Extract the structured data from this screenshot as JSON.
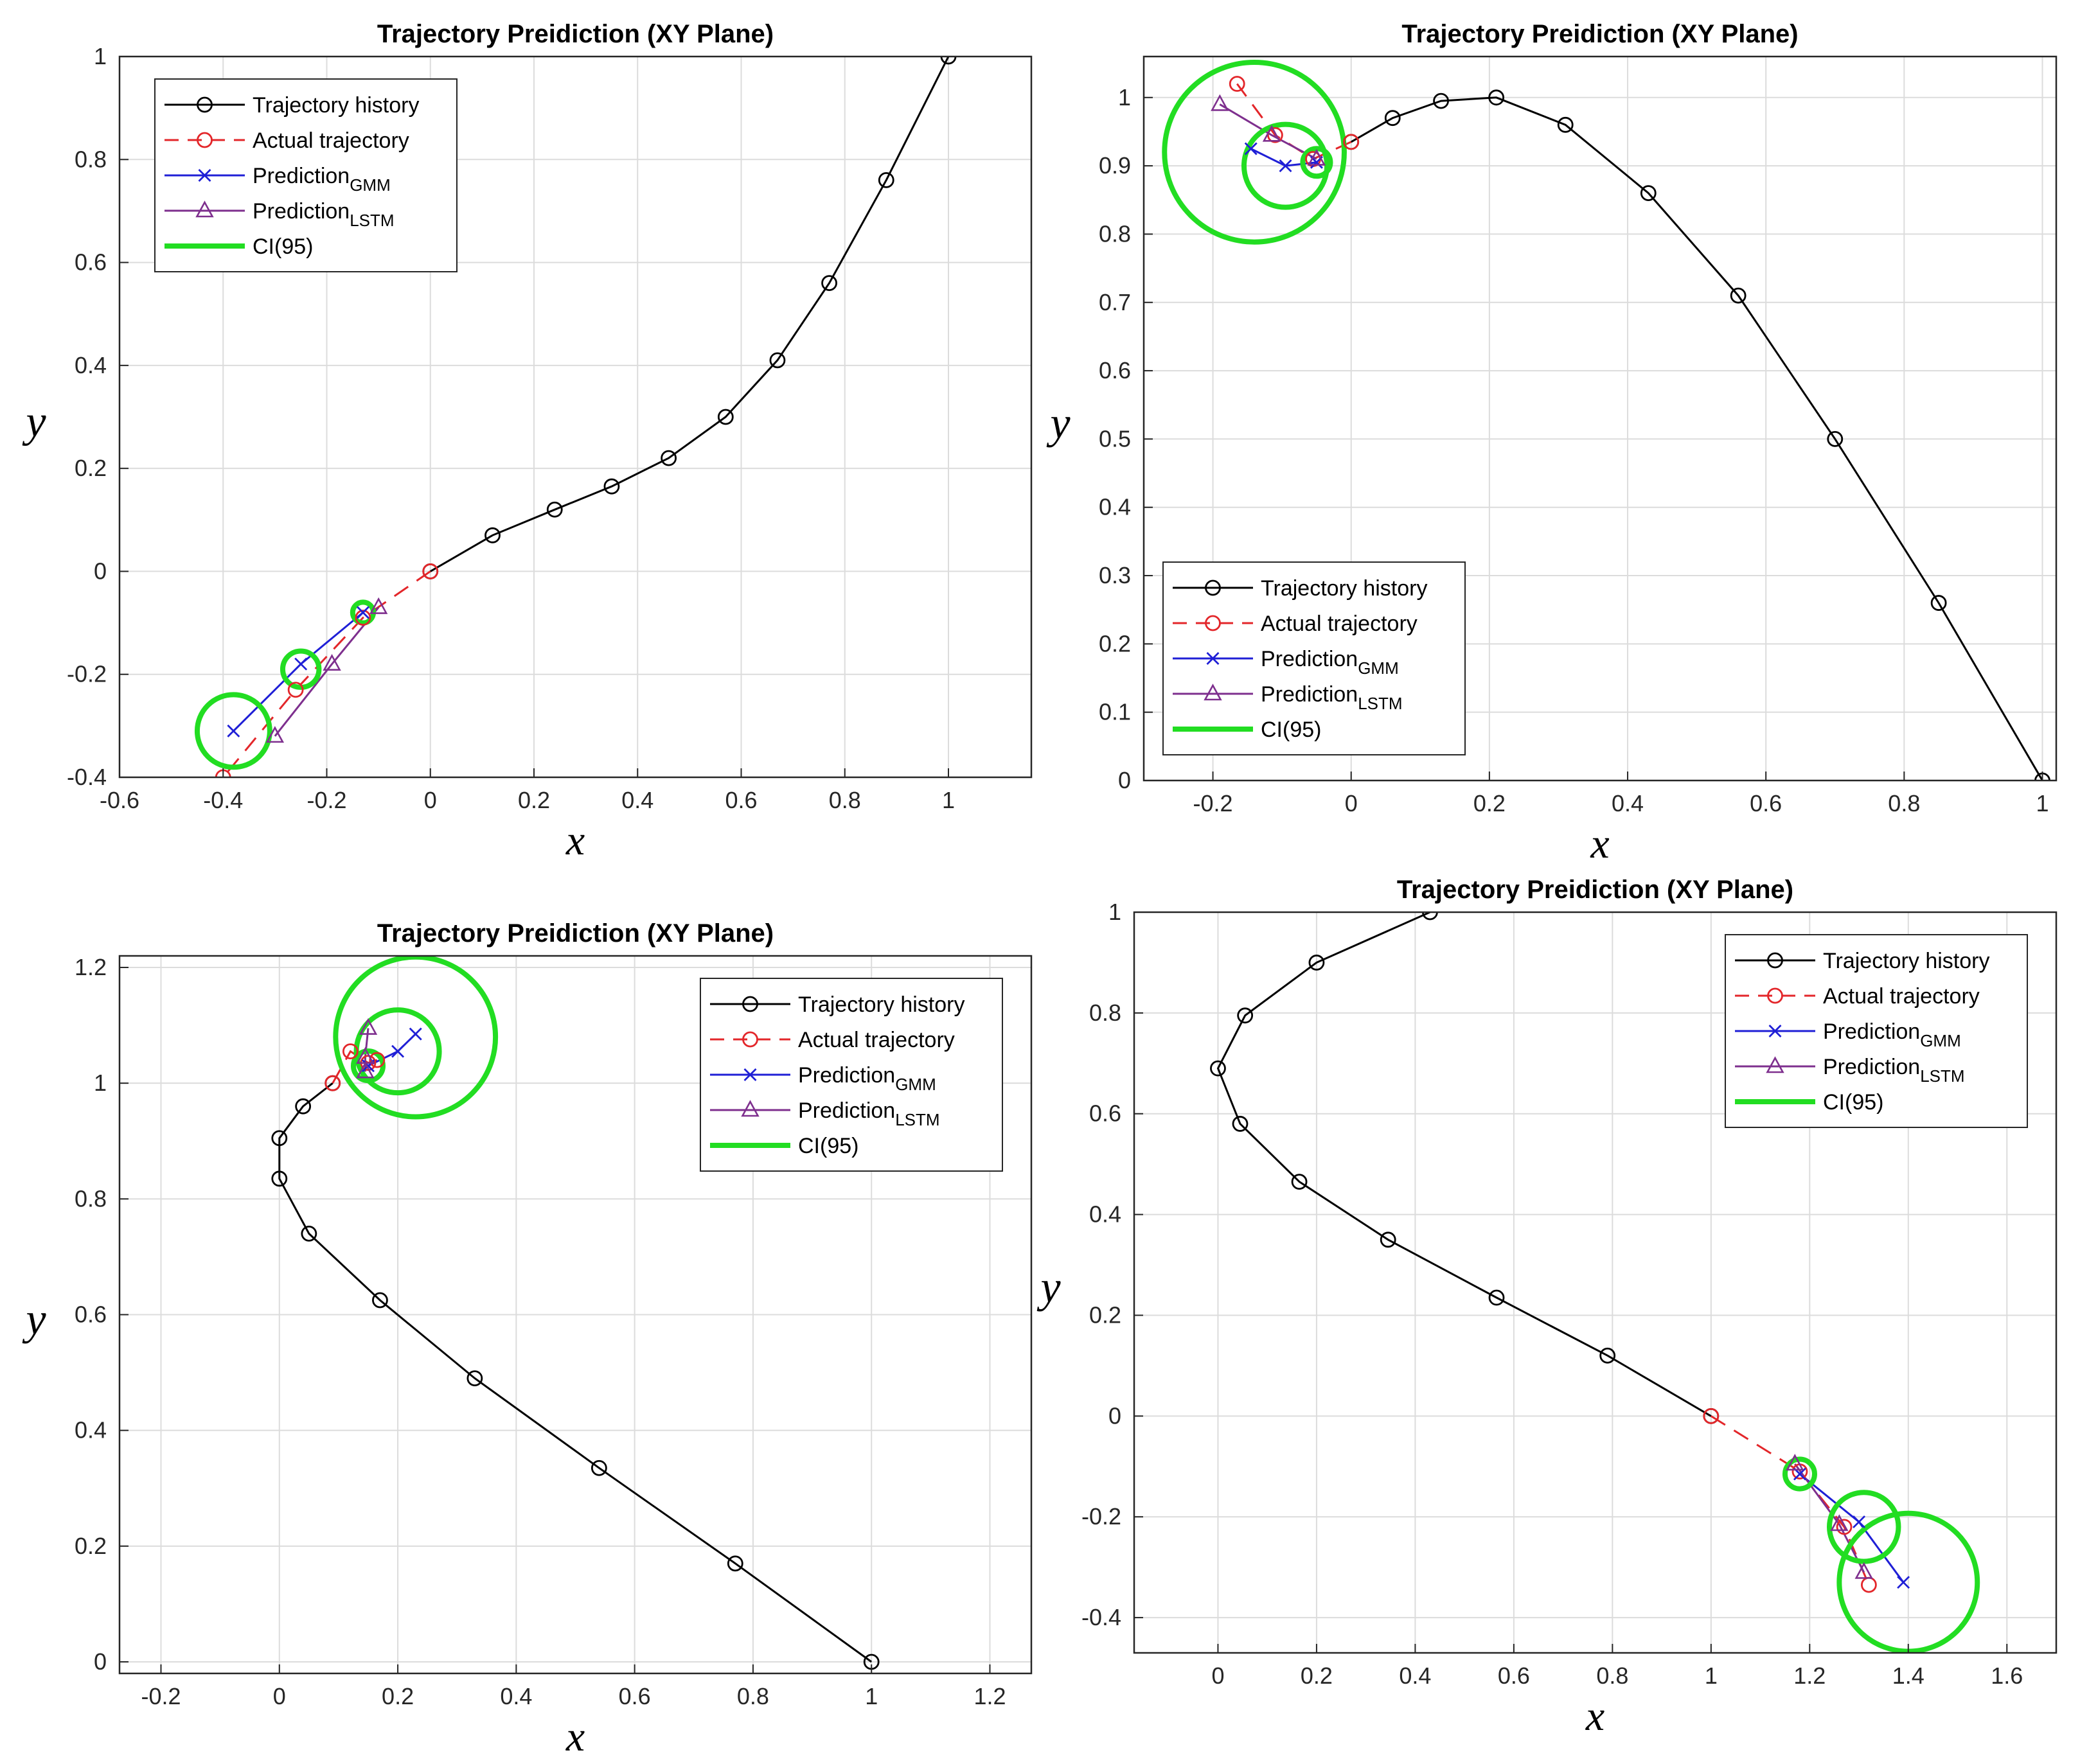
{
  "colors": {
    "history": "#000000",
    "actual": "#e3262a",
    "gmm": "#1f1fd6",
    "lstm": "#7e2f8e",
    "ci": "#22dd22",
    "grid": "#dcdcdc",
    "axes": "#262626"
  },
  "legend": {
    "history": "Trajectory history",
    "actual": "Actual trajectory",
    "gmm_base": "Prediction",
    "gmm_sub": "GMM",
    "lstm_base": "Prediction",
    "lstm_sub": "LSTM",
    "ci": "CI(95)"
  },
  "chart_data": [
    {
      "type": "line",
      "title": "Trajectory Preidiction (XY Plane)",
      "xlabel": "x",
      "ylabel": "y",
      "xlim": [
        -0.6,
        1.16
      ],
      "ylim": [
        -0.4,
        1.0
      ],
      "xticks": [
        -0.6,
        -0.4,
        -0.2,
        0,
        0.2,
        0.4,
        0.6,
        0.8,
        1
      ],
      "yticks": [
        -0.4,
        -0.2,
        0,
        0.2,
        0.4,
        0.6,
        0.8,
        1
      ],
      "grid": true,
      "legend_position": "top-left",
      "series": [
        {
          "name": "Trajectory history",
          "key": "history",
          "x": [
            1,
            0.88,
            0.77,
            0.67,
            0.57,
            0.46,
            0.35,
            0.24,
            0.12,
            0
          ],
          "y": [
            1,
            0.76,
            0.56,
            0.41,
            0.3,
            0.22,
            0.165,
            0.12,
            0.07,
            0
          ]
        },
        {
          "name": "Actual trajectory",
          "key": "actual",
          "x": [
            0,
            -0.13,
            -0.26,
            -0.4
          ],
          "y": [
            0,
            -0.09,
            -0.23,
            -0.4
          ]
        },
        {
          "name": "Prediction GMM",
          "key": "gmm",
          "x": [
            -0.13,
            -0.25,
            -0.38
          ],
          "y": [
            -0.08,
            -0.18,
            -0.31
          ]
        },
        {
          "name": "Prediction LSTM",
          "key": "lstm",
          "x": [
            -0.1,
            -0.19,
            -0.3
          ],
          "y": [
            -0.07,
            -0.18,
            -0.32
          ]
        }
      ],
      "ci_circles": [
        {
          "x": -0.13,
          "y": -0.08,
          "r": 0.02
        },
        {
          "x": -0.25,
          "y": -0.19,
          "r": 0.035
        },
        {
          "x": -0.38,
          "y": -0.31,
          "r": 0.07
        }
      ]
    },
    {
      "type": "line",
      "title": "Trajectory Preidiction (XY Plane)",
      "xlabel": "x",
      "ylabel": "y",
      "xlim": [
        -0.3,
        1.02
      ],
      "ylim": [
        0,
        1.06
      ],
      "xticks": [
        -0.2,
        0,
        0.2,
        0.4,
        0.6,
        0.8,
        1
      ],
      "yticks": [
        0,
        0.1,
        0.2,
        0.3,
        0.4,
        0.5,
        0.6,
        0.7,
        0.8,
        0.9,
        1
      ],
      "grid": true,
      "legend_position": "bottom-left",
      "series": [
        {
          "name": "Trajectory history",
          "key": "history",
          "x": [
            1,
            0.85,
            0.7,
            0.56,
            0.43,
            0.31,
            0.21,
            0.13,
            0.06,
            0
          ],
          "y": [
            0,
            0.26,
            0.5,
            0.71,
            0.86,
            0.96,
            1.0,
            0.995,
            0.97,
            0.935
          ]
        },
        {
          "name": "Actual trajectory",
          "key": "actual",
          "x": [
            0,
            -0.055,
            -0.11,
            -0.165
          ],
          "y": [
            0.935,
            0.91,
            0.945,
            1.02
          ]
        },
        {
          "name": "Prediction GMM",
          "key": "gmm",
          "x": [
            -0.05,
            -0.095,
            -0.145
          ],
          "y": [
            0.905,
            0.9,
            0.925
          ]
        },
        {
          "name": "Prediction LSTM",
          "key": "lstm",
          "x": [
            -0.05,
            -0.115,
            -0.19
          ],
          "y": [
            0.91,
            0.945,
            0.99
          ]
        }
      ],
      "ci_circles": [
        {
          "x": -0.05,
          "y": 0.905,
          "r": 0.02
        },
        {
          "x": -0.095,
          "y": 0.9,
          "r": 0.06
        },
        {
          "x": -0.14,
          "y": 0.92,
          "r": 0.13
        }
      ]
    },
    {
      "type": "line",
      "title": "Trajectory Preidiction (XY Plane)",
      "xlabel": "x",
      "ylabel": "y",
      "xlim": [
        -0.27,
        1.27
      ],
      "ylim": [
        -0.02,
        1.22
      ],
      "xticks": [
        -0.2,
        0,
        0.2,
        0.4,
        0.6,
        0.8,
        1,
        1.2
      ],
      "yticks": [
        0,
        0.2,
        0.4,
        0.6,
        0.8,
        1,
        1.2
      ],
      "grid": true,
      "legend_position": "top-right",
      "series": [
        {
          "name": "Trajectory history",
          "key": "history",
          "x": [
            1,
            0.77,
            0.54,
            0.33,
            0.17,
            0.05,
            0,
            0,
            0.04,
            0.09
          ],
          "y": [
            0,
            0.17,
            0.335,
            0.49,
            0.625,
            0.74,
            0.835,
            0.905,
            0.96,
            1.0
          ]
        },
        {
          "name": "Actual trajectory",
          "key": "actual",
          "x": [
            0.09,
            0.12,
            0.15,
            0.165
          ],
          "y": [
            1.0,
            1.055,
            1.035,
            1.04
          ]
        },
        {
          "name": "Prediction GMM",
          "key": "gmm",
          "x": [
            0.15,
            0.2,
            0.23
          ],
          "y": [
            1.03,
            1.055,
            1.085
          ]
        },
        {
          "name": "Prediction LSTM",
          "key": "lstm",
          "x": [
            0.145,
            0.145,
            0.15
          ],
          "y": [
            1.02,
            1.045,
            1.095
          ]
        }
      ],
      "ci_circles": [
        {
          "x": 0.15,
          "y": 1.03,
          "r": 0.025
        },
        {
          "x": 0.2,
          "y": 1.055,
          "r": 0.07
        },
        {
          "x": 0.23,
          "y": 1.08,
          "r": 0.135
        }
      ]
    },
    {
      "type": "line",
      "title": "Trajectory Preidiction (XY Plane)",
      "xlabel": "x",
      "ylabel": "y",
      "xlim": [
        -0.17,
        1.7
      ],
      "ylim": [
        -0.47,
        1.0
      ],
      "xticks": [
        0,
        0.2,
        0.4,
        0.6,
        0.8,
        1,
        1.2,
        1.4,
        1.6
      ],
      "yticks": [
        -0.4,
        -0.2,
        0,
        0.2,
        0.4,
        0.6,
        0.8,
        1
      ],
      "grid": true,
      "legend_position": "top-right",
      "series": [
        {
          "name": "Trajectory history",
          "key": "history",
          "x": [
            0.43,
            0.2,
            0.055,
            0,
            0.045,
            0.165,
            0.345,
            0.565,
            0.79,
            1
          ],
          "y": [
            1,
            0.9,
            0.795,
            0.69,
            0.58,
            0.465,
            0.35,
            0.235,
            0.12,
            0
          ]
        },
        {
          "name": "Actual trajectory",
          "key": "actual",
          "x": [
            1,
            1.18,
            1.27,
            1.32
          ],
          "y": [
            0,
            -0.11,
            -0.22,
            -0.335
          ]
        },
        {
          "name": "Prediction GMM",
          "key": "gmm",
          "x": [
            1.18,
            1.3,
            1.39
          ],
          "y": [
            -0.115,
            -0.21,
            -0.33
          ]
        },
        {
          "name": "Prediction LSTM",
          "key": "lstm",
          "x": [
            1.17,
            1.26,
            1.31
          ],
          "y": [
            -0.095,
            -0.215,
            -0.31
          ]
        }
      ],
      "ci_circles": [
        {
          "x": 1.18,
          "y": -0.115,
          "r": 0.03
        },
        {
          "x": 1.31,
          "y": -0.22,
          "r": 0.07
        },
        {
          "x": 1.4,
          "y": -0.33,
          "r": 0.14
        }
      ]
    }
  ]
}
